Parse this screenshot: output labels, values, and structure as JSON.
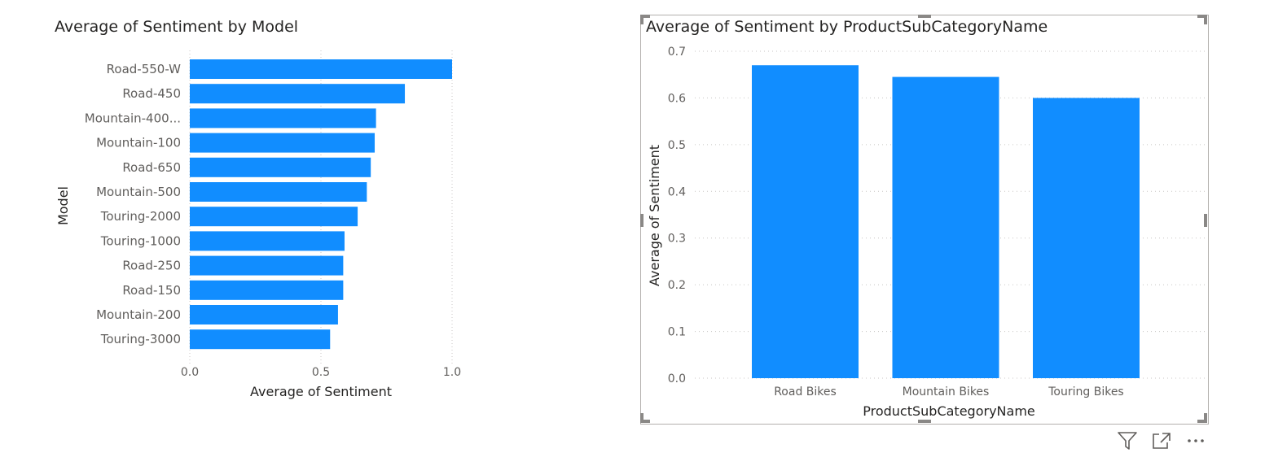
{
  "charts": {
    "left": {
      "title": "Average of Sentiment by Model",
      "xlabel": "Average of Sentiment",
      "ylabel": "Model"
    },
    "right": {
      "title": "Average of Sentiment by ProductSubCategoryName",
      "xlabel": "ProductSubCategoryName",
      "ylabel": "Average of Sentiment"
    }
  },
  "header_icons": [
    "filter-icon",
    "focus-mode-icon",
    "more-options-icon"
  ],
  "colors": {
    "bar": "#118DFF",
    "grid": "#c8c6c4",
    "axis_text": "#605e5c",
    "title": "#252423"
  },
  "chart_data": [
    {
      "type": "bar",
      "orientation": "horizontal",
      "title": "Average of Sentiment by Model",
      "xlabel": "Average of Sentiment",
      "ylabel": "Model",
      "categories": [
        "Road-550-W",
        "Road-450",
        "Mountain-400...",
        "Mountain-100",
        "Road-650",
        "Mountain-500",
        "Touring-2000",
        "Touring-1000",
        "Road-250",
        "Road-150",
        "Mountain-200",
        "Touring-3000"
      ],
      "values": [
        1.0,
        0.82,
        0.71,
        0.705,
        0.69,
        0.675,
        0.64,
        0.59,
        0.585,
        0.585,
        0.565,
        0.535
      ],
      "xlim": [
        0,
        1.0
      ],
      "xticks": [
        "0.0",
        "0.5",
        "1.0"
      ],
      "grid": true
    },
    {
      "type": "bar",
      "orientation": "vertical",
      "title": "Average of Sentiment by ProductSubCategoryName",
      "xlabel": "ProductSubCategoryName",
      "ylabel": "Average of Sentiment",
      "categories": [
        "Road Bikes",
        "Mountain Bikes",
        "Touring Bikes"
      ],
      "values": [
        0.67,
        0.645,
        0.6
      ],
      "ylim": [
        0,
        0.7
      ],
      "yticks": [
        "0.0",
        "0.1",
        "0.2",
        "0.3",
        "0.4",
        "0.5",
        "0.6",
        "0.7"
      ],
      "grid": true
    }
  ]
}
